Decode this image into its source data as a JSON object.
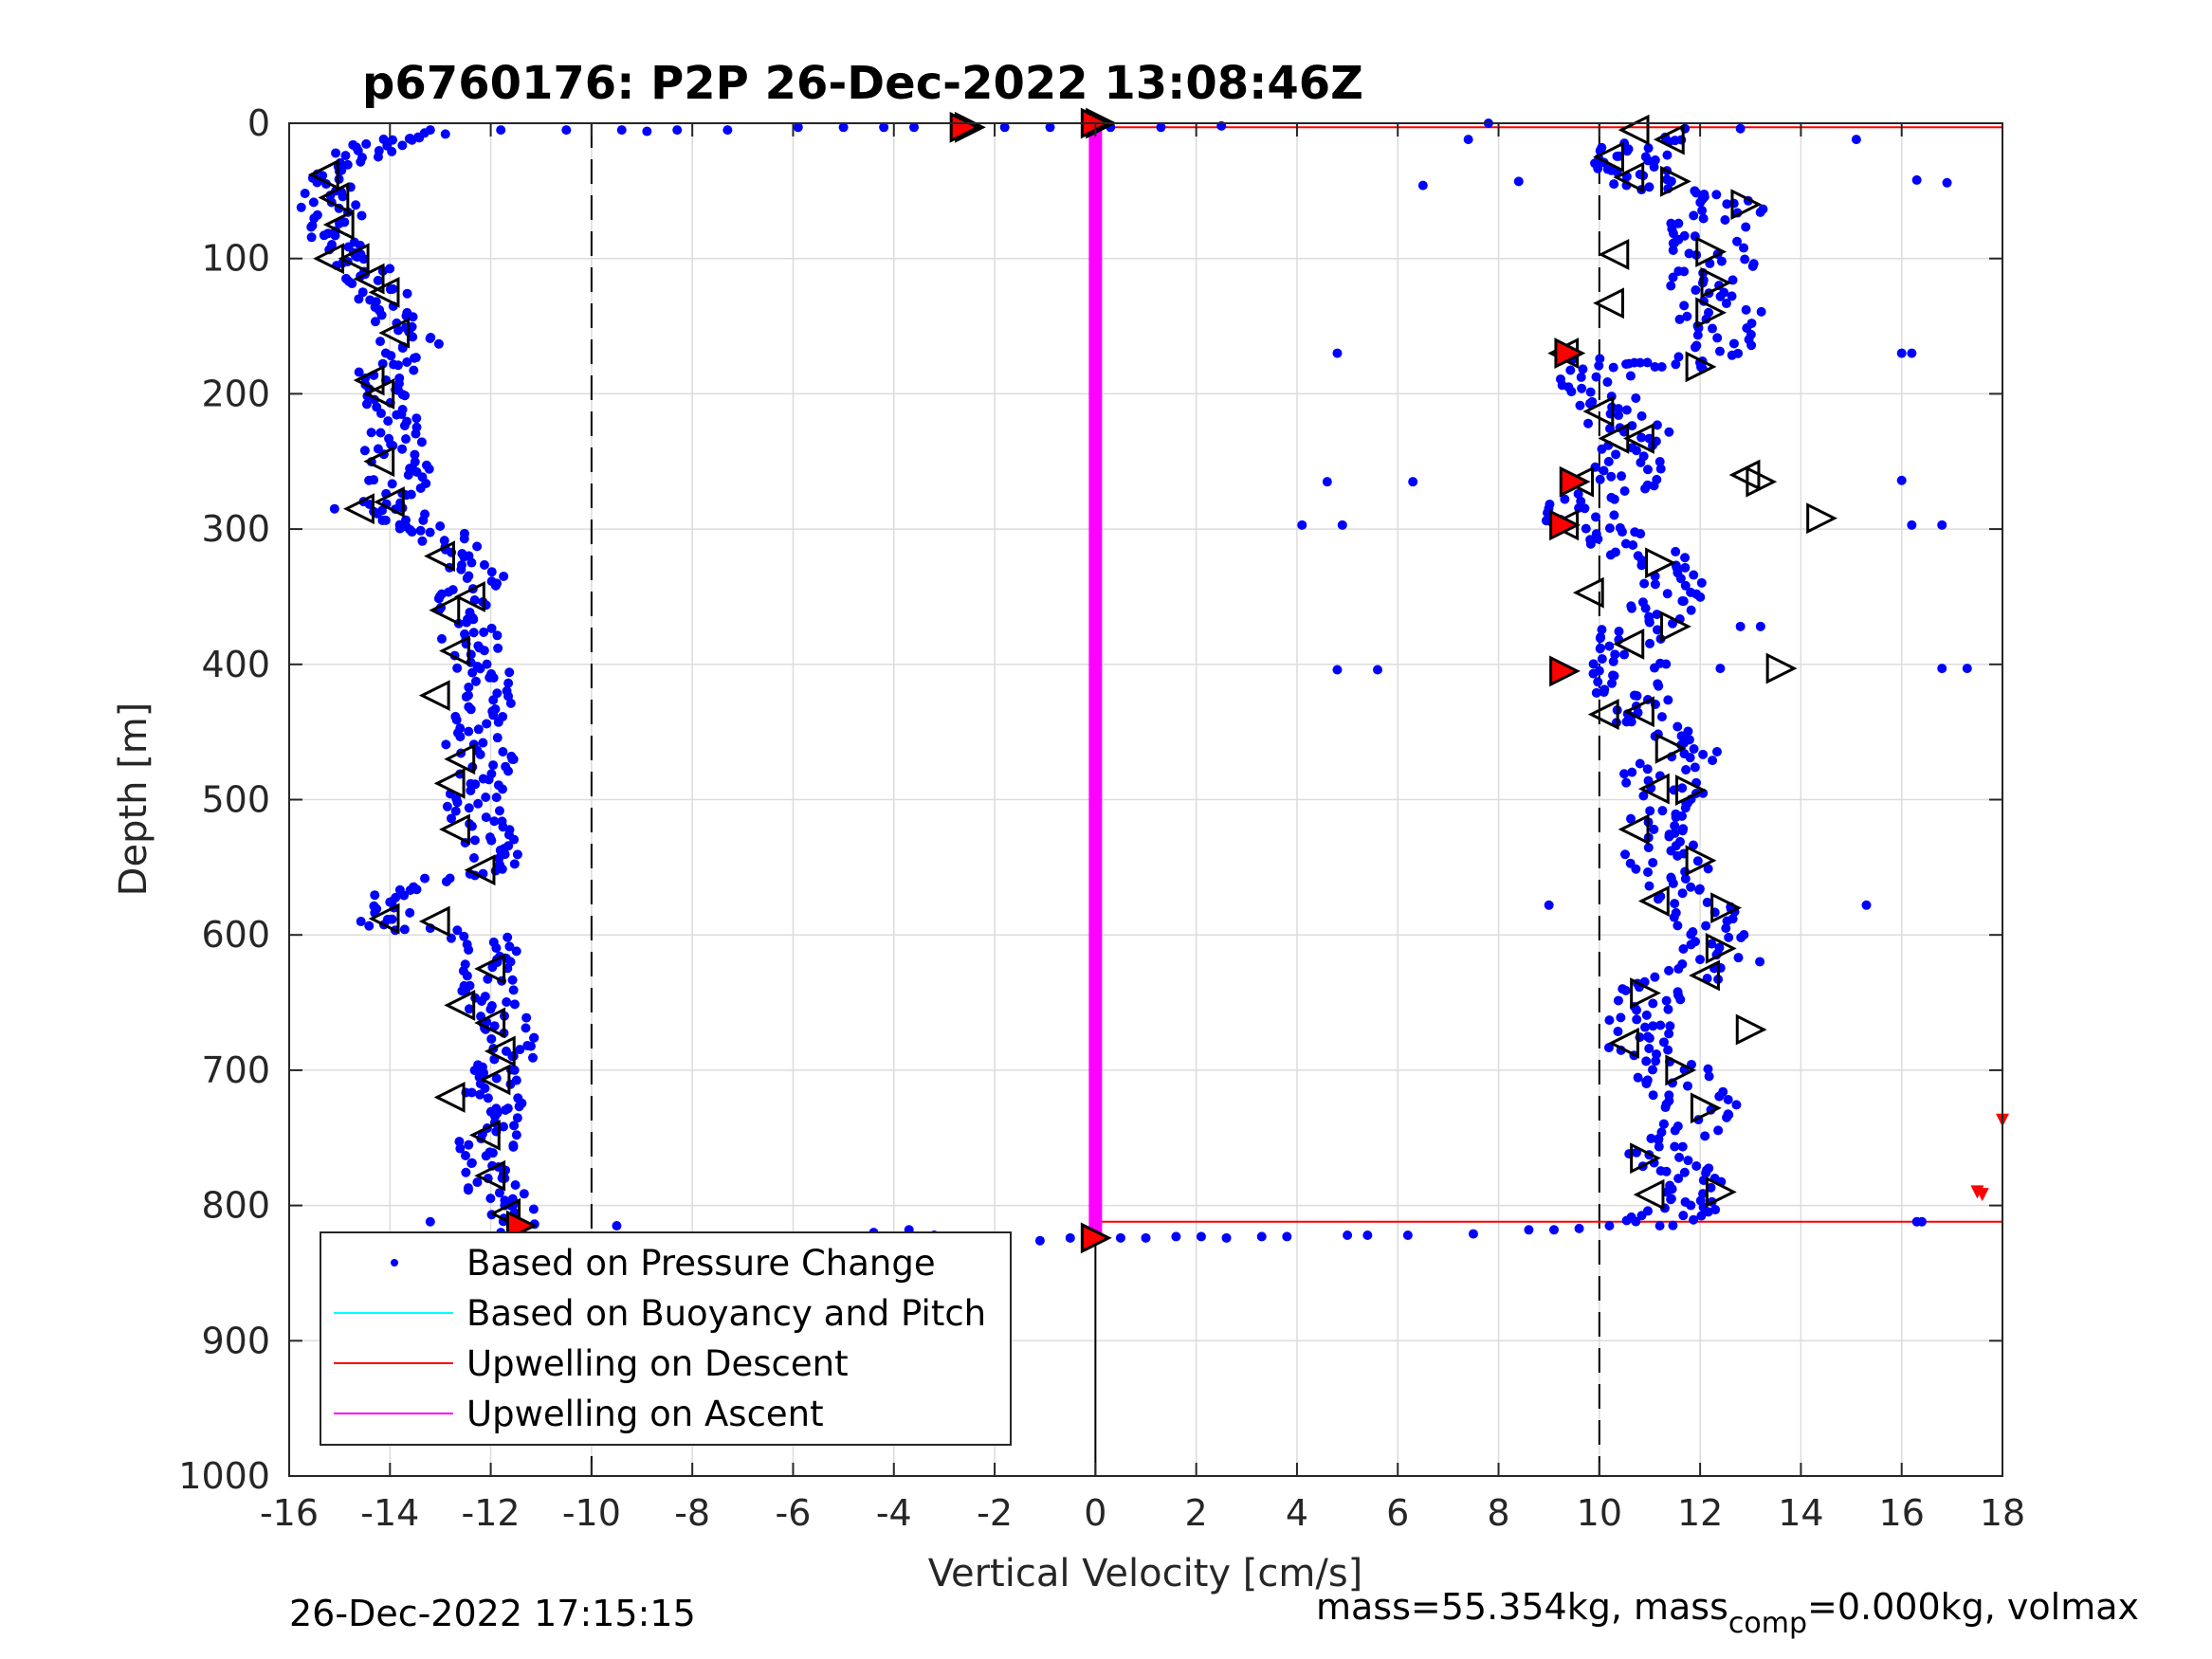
{
  "chart_data": {
    "type": "scatter",
    "title": "p6760176: P2P 26-Dec-2022 13:08:46Z",
    "xlabel": "Vertical Velocity [cm/s]",
    "ylabel": "Depth [m]",
    "xlim": [
      -16,
      18
    ],
    "ylim": [
      0,
      1000
    ],
    "y_reversed": true,
    "grid": true,
    "x_ticks": [
      "-16",
      "-14",
      "-12",
      "-10",
      "-8",
      "-6",
      "-4",
      "-2",
      "0",
      "2",
      "4",
      "6",
      "8",
      "10",
      "12",
      "14",
      "16",
      "18"
    ],
    "y_ticks": [
      "0",
      "100",
      "200",
      "300",
      "400",
      "500",
      "600",
      "700",
      "800",
      "900",
      "1000"
    ],
    "reference_lines": {
      "vertical_dashed_x": [
        -10,
        10
      ],
      "vertical_solid_x": [
        0
      ]
    },
    "legend_position": "bottom-left",
    "legend": [
      {
        "label": "Based on Pressure Change",
        "color": "#0000ff",
        "marker": "dot"
      },
      {
        "label": "Based on Buoyancy and Pitch",
        "color": "#00ffff",
        "marker": "line"
      },
      {
        "label": "Upwelling on Descent",
        "color": "#ff0000",
        "marker": "line"
      },
      {
        "label": "Upwelling on Ascent",
        "color": "#ff00ff",
        "marker": "line"
      }
    ],
    "series": [
      {
        "name": "Based on Pressure Change",
        "color": "#0000ff",
        "descent_profile": [
          [
            -13.5,
            8
          ],
          [
            -14.2,
            15
          ],
          [
            -14.8,
            25
          ],
          [
            -15.3,
            38
          ],
          [
            -15.1,
            50
          ],
          [
            -15.2,
            65
          ],
          [
            -15.0,
            80
          ],
          [
            -14.9,
            95
          ],
          [
            -14.6,
            105
          ],
          [
            -14.3,
            120
          ],
          [
            -14.0,
            135
          ],
          [
            -13.8,
            150
          ],
          [
            -13.6,
            165
          ],
          [
            -14.0,
            180
          ],
          [
            -14.2,
            195
          ],
          [
            -13.9,
            210
          ],
          [
            -13.8,
            225
          ],
          [
            -14.0,
            240
          ],
          [
            -13.8,
            255
          ],
          [
            -13.9,
            270
          ],
          [
            -14.0,
            285
          ],
          [
            -13.5,
            295
          ],
          [
            -13.0,
            305
          ],
          [
            -12.5,
            320
          ],
          [
            -12.3,
            335
          ],
          [
            -12.6,
            350
          ],
          [
            -12.7,
            365
          ],
          [
            -12.4,
            380
          ],
          [
            -12.2,
            395
          ],
          [
            -12.1,
            410
          ],
          [
            -12.0,
            425
          ],
          [
            -12.3,
            440
          ],
          [
            -12.4,
            455
          ],
          [
            -12.1,
            470
          ],
          [
            -12.3,
            485
          ],
          [
            -12.4,
            500
          ],
          [
            -12.3,
            515
          ],
          [
            -12.0,
            530
          ],
          [
            -12.0,
            545
          ],
          [
            -12.8,
            560
          ],
          [
            -14.0,
            575
          ],
          [
            -14.1,
            590
          ],
          [
            -11.9,
            605
          ],
          [
            -11.9,
            620
          ],
          [
            -12.0,
            635
          ],
          [
            -12.1,
            650
          ],
          [
            -11.8,
            665
          ],
          [
            -11.6,
            680
          ],
          [
            -11.7,
            695
          ],
          [
            -11.8,
            710
          ],
          [
            -12.0,
            725
          ],
          [
            -12.0,
            740
          ],
          [
            -12.1,
            755
          ],
          [
            -12.0,
            770
          ],
          [
            -11.9,
            785
          ],
          [
            -11.7,
            800
          ],
          [
            -11.5,
            815
          ]
        ],
        "ascent_profile": [
          [
            11.0,
            815
          ],
          [
            11.5,
            805
          ],
          [
            12.2,
            795
          ],
          [
            12.0,
            780
          ],
          [
            11.2,
            770
          ],
          [
            11.0,
            755
          ],
          [
            11.8,
            740
          ],
          [
            12.0,
            725
          ],
          [
            11.6,
            710
          ],
          [
            11.4,
            695
          ],
          [
            10.8,
            680
          ],
          [
            10.7,
            665
          ],
          [
            10.8,
            650
          ],
          [
            11.5,
            635
          ],
          [
            12.5,
            620
          ],
          [
            12.4,
            605
          ],
          [
            12.0,
            590
          ],
          [
            11.8,
            575
          ],
          [
            11.6,
            560
          ],
          [
            11.2,
            545
          ],
          [
            11.0,
            530
          ],
          [
            11.2,
            515
          ],
          [
            11.3,
            500
          ],
          [
            11.2,
            485
          ],
          [
            11.5,
            470
          ],
          [
            11.6,
            455
          ],
          [
            10.9,
            440
          ],
          [
            10.5,
            425
          ],
          [
            10.4,
            410
          ],
          [
            10.6,
            395
          ],
          [
            10.6,
            380
          ],
          [
            11.0,
            365
          ],
          [
            11.5,
            350
          ],
          [
            11.4,
            335
          ],
          [
            11.0,
            320
          ],
          [
            10.3,
            305
          ],
          [
            9.5,
            295
          ],
          [
            9.8,
            280
          ],
          [
            10.4,
            265
          ],
          [
            10.5,
            250
          ],
          [
            10.8,
            235
          ],
          [
            10.5,
            220
          ],
          [
            10.2,
            205
          ],
          [
            10.0,
            190
          ],
          [
            9.8,
            175
          ],
          [
            11.8,
            180
          ],
          [
            12.5,
            165
          ],
          [
            12.3,
            150
          ],
          [
            12.5,
            135
          ],
          [
            12.0,
            120
          ],
          [
            12.3,
            105
          ],
          [
            12.2,
            90
          ],
          [
            12.1,
            75
          ],
          [
            12.8,
            60
          ],
          [
            11.4,
            50
          ],
          [
            10.8,
            40
          ],
          [
            10.5,
            30
          ],
          [
            10.6,
            20
          ],
          [
            10.9,
            10
          ]
        ],
        "surface_points": [
          [
            -13.2,
            5
          ],
          [
            -12.9,
            8
          ],
          [
            -11.8,
            5
          ],
          [
            -10.5,
            5
          ],
          [
            -9.4,
            5
          ],
          [
            -8.9,
            6
          ],
          [
            -8.3,
            5
          ],
          [
            -7.3,
            5
          ],
          [
            -5.9,
            3
          ],
          [
            -5.0,
            3
          ],
          [
            -4.2,
            3
          ],
          [
            -3.6,
            3
          ],
          [
            -2.6,
            3
          ],
          [
            -1.8,
            3
          ],
          [
            -0.9,
            3
          ],
          [
            0.3,
            3
          ],
          [
            1.3,
            3
          ],
          [
            2.5,
            2
          ],
          [
            7.4,
            12
          ],
          [
            7.8,
            0
          ],
          [
            8.4,
            43
          ],
          [
            6.5,
            46
          ],
          [
            11.7,
            4
          ],
          [
            12.8,
            4
          ],
          [
            15.1,
            12
          ],
          [
            16.3,
            42
          ],
          [
            16.9,
            44
          ]
        ],
        "bottom_points": [
          [
            -11.8,
            820
          ],
          [
            -9.5,
            815
          ],
          [
            -4.4,
            820
          ],
          [
            -3.7,
            818
          ],
          [
            -3.2,
            822
          ],
          [
            -2.6,
            823
          ],
          [
            -1.8,
            823
          ],
          [
            -1.1,
            826
          ],
          [
            -0.5,
            824
          ],
          [
            0.5,
            824
          ],
          [
            1.0,
            824
          ],
          [
            1.6,
            823
          ],
          [
            2.1,
            823
          ],
          [
            2.6,
            824
          ],
          [
            3.3,
            823
          ],
          [
            3.8,
            823
          ],
          [
            5.0,
            822
          ],
          [
            5.4,
            822
          ],
          [
            6.2,
            822
          ],
          [
            7.5,
            821
          ],
          [
            8.6,
            818
          ],
          [
            9.1,
            818
          ],
          [
            9.6,
            817
          ],
          [
            10.2,
            815
          ]
        ],
        "outliers": [
          [
            -15.1,
            285
          ],
          [
            -13.2,
            595
          ],
          [
            -13.2,
            812
          ],
          [
            4.8,
            170
          ],
          [
            4.6,
            265
          ],
          [
            6.3,
            265
          ],
          [
            4.1,
            297
          ],
          [
            4.9,
            297
          ],
          [
            4.8,
            404
          ],
          [
            5.6,
            404
          ],
          [
            9.0,
            578
          ],
          [
            15.3,
            578
          ],
          [
            16.0,
            170
          ],
          [
            16.2,
            170
          ],
          [
            16.0,
            264
          ],
          [
            16.2,
            297
          ],
          [
            16.8,
            297
          ],
          [
            17.3,
            403
          ],
          [
            16.8,
            403
          ],
          [
            12.4,
            403
          ],
          [
            12.8,
            372
          ],
          [
            13.2,
            372
          ],
          [
            16.3,
            812
          ],
          [
            16.4,
            812
          ]
        ]
      },
      {
        "name": "Upwelling on Descent",
        "color": "#ff0000",
        "lines": [
          {
            "x": [
              0,
              18
            ],
            "y": [
              3,
              3
            ]
          },
          {
            "x": [
              0,
              18
            ],
            "y": [
              812,
              812
            ]
          }
        ],
        "markers": [
          [
            18,
            737
          ],
          [
            17.5,
            790
          ],
          [
            17.6,
            792
          ]
        ]
      },
      {
        "name": "Upwelling on Ascent",
        "color": "#ff00ff",
        "line": {
          "x": [
            0,
            0
          ],
          "y": [
            3,
            825
          ]
        }
      }
    ],
    "triangle_markers": {
      "right": [
        [
          -2.5,
          3
        ],
        [
          0.1,
          0
        ],
        [
          11.5,
          43
        ],
        [
          12.9,
          60
        ],
        [
          12.2,
          95
        ],
        [
          12.3,
          118
        ],
        [
          12.2,
          140
        ],
        [
          12.0,
          180
        ],
        [
          13.2,
          265
        ],
        [
          14.4,
          292
        ],
        [
          11.2,
          325
        ],
        [
          11.5,
          372
        ],
        [
          13.6,
          403
        ],
        [
          11.4,
          462
        ],
        [
          11.8,
          493
        ],
        [
          12.0,
          545
        ],
        [
          12.5,
          580
        ],
        [
          12.4,
          610
        ],
        [
          10.9,
          643
        ],
        [
          13.0,
          670
        ],
        [
          10.9,
          765
        ],
        [
          11.6,
          700
        ],
        [
          12.1,
          728
        ],
        [
          12.4,
          790
        ]
      ],
      "left": [
        [
          -15.3,
          38
        ],
        [
          -15.1,
          55
        ],
        [
          -15.0,
          75
        ],
        [
          -15.2,
          100
        ],
        [
          -14.7,
          100
        ],
        [
          -14.4,
          115
        ],
        [
          -14.1,
          125
        ],
        [
          -13.9,
          155
        ],
        [
          -14.4,
          190
        ],
        [
          -14.2,
          200
        ],
        [
          -14.2,
          250
        ],
        [
          -14.6,
          285
        ],
        [
          -14.0,
          280
        ],
        [
          -13.0,
          320
        ],
        [
          -12.9,
          360
        ],
        [
          -12.4,
          350
        ],
        [
          -12.7,
          390
        ],
        [
          -13.1,
          423
        ],
        [
          -12.6,
          470
        ],
        [
          -12.8,
          488
        ],
        [
          -12.7,
          522
        ],
        [
          -12.2,
          552
        ],
        [
          -14.1,
          588
        ],
        [
          -13.1,
          590
        ],
        [
          -12.0,
          625
        ],
        [
          -12.6,
          652
        ],
        [
          -12.0,
          665
        ],
        [
          -11.8,
          686
        ],
        [
          -11.9,
          707
        ],
        [
          -12.8,
          720
        ],
        [
          -12.1,
          748
        ],
        [
          -12.0,
          778
        ],
        [
          -11.7,
          806
        ],
        [
          10.7,
          5
        ],
        [
          10.2,
          25
        ],
        [
          10.6,
          40
        ],
        [
          11.4,
          12
        ],
        [
          10.3,
          97
        ],
        [
          10.2,
          133
        ],
        [
          9.3,
          170
        ],
        [
          9.6,
          265
        ],
        [
          9.3,
          297
        ],
        [
          10.0,
          213
        ],
        [
          10.3,
          233
        ],
        [
          10.8,
          233
        ],
        [
          12.9,
          260
        ],
        [
          9.8,
          347
        ],
        [
          10.1,
          437
        ],
        [
          10.8,
          435
        ],
        [
          10.6,
          385
        ],
        [
          11.1,
          492
        ],
        [
          10.7,
          522
        ],
        [
          11.1,
          575
        ],
        [
          10.5,
          680
        ],
        [
          11.0,
          792
        ],
        [
          12.1,
          630
        ]
      ]
    },
    "red_markers": [
      [
        -2.6,
        3
      ],
      [
        0.0,
        0
      ],
      [
        -11.4,
        815
      ],
      [
        0.0,
        824
      ],
      [
        9.4,
        170
      ],
      [
        9.5,
        265
      ],
      [
        9.3,
        297
      ],
      [
        9.3,
        405
      ]
    ]
  },
  "footer": {
    "timestamp": "26-Dec-2022 17:15:15",
    "mass_text": "mass=55.354kg, mass",
    "mass_sub": "comp",
    "mass_tail": "=0.000kg, volmax"
  }
}
